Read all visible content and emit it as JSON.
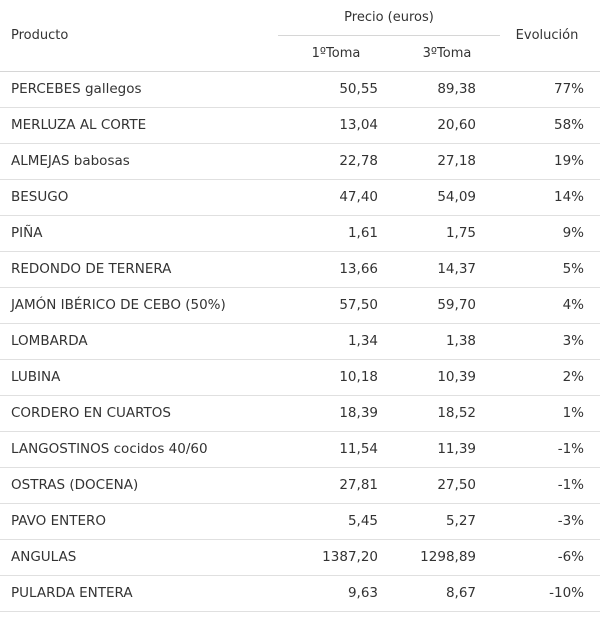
{
  "header": {
    "producto": "Producto",
    "precio": "Precio (euros)",
    "toma1": "1ºToma",
    "toma3": "3ºToma",
    "evolucion": "Evolución"
  },
  "rows": [
    {
      "producto": "PERCEBES gallegos",
      "toma1": "50,55",
      "toma3": "89,38",
      "evolucion": "77%"
    },
    {
      "producto": "MERLUZA AL CORTE",
      "toma1": "13,04",
      "toma3": "20,60",
      "evolucion": "58%"
    },
    {
      "producto": "ALMEJAS babosas",
      "toma1": "22,78",
      "toma3": "27,18",
      "evolucion": "19%"
    },
    {
      "producto": "BESUGO",
      "toma1": "47,40",
      "toma3": "54,09",
      "evolucion": "14%"
    },
    {
      "producto": "PIÑA",
      "toma1": "1,61",
      "toma3": "1,75",
      "evolucion": "9%"
    },
    {
      "producto": "REDONDO DE TERNERA",
      "toma1": "13,66",
      "toma3": "14,37",
      "evolucion": "5%"
    },
    {
      "producto": "JAMÓN IBÉRICO DE CEBO (50%)",
      "toma1": "57,50",
      "toma3": "59,70",
      "evolucion": "4%"
    },
    {
      "producto": "LOMBARDA",
      "toma1": "1,34",
      "toma3": "1,38",
      "evolucion": "3%"
    },
    {
      "producto": "LUBINA",
      "toma1": "10,18",
      "toma3": "10,39",
      "evolucion": "2%"
    },
    {
      "producto": "CORDERO EN CUARTOS",
      "toma1": "18,39",
      "toma3": "18,52",
      "evolucion": "1%"
    },
    {
      "producto": "LANGOSTINOS cocidos 40/60",
      "toma1": "11,54",
      "toma3": "11,39",
      "evolucion": "-1%"
    },
    {
      "producto": "OSTRAS (DOCENA)",
      "toma1": "27,81",
      "toma3": "27,50",
      "evolucion": "-1%"
    },
    {
      "producto": "PAVO ENTERO",
      "toma1": "5,45",
      "toma3": "5,27",
      "evolucion": "-3%"
    },
    {
      "producto": "ANGULAS",
      "toma1": "1387,20",
      "toma3": "1298,89",
      "evolucion": "-6%"
    },
    {
      "producto": "PULARDA ENTERA",
      "toma1": "9,63",
      "toma3": "8,67",
      "evolucion": "-10%"
    }
  ]
}
